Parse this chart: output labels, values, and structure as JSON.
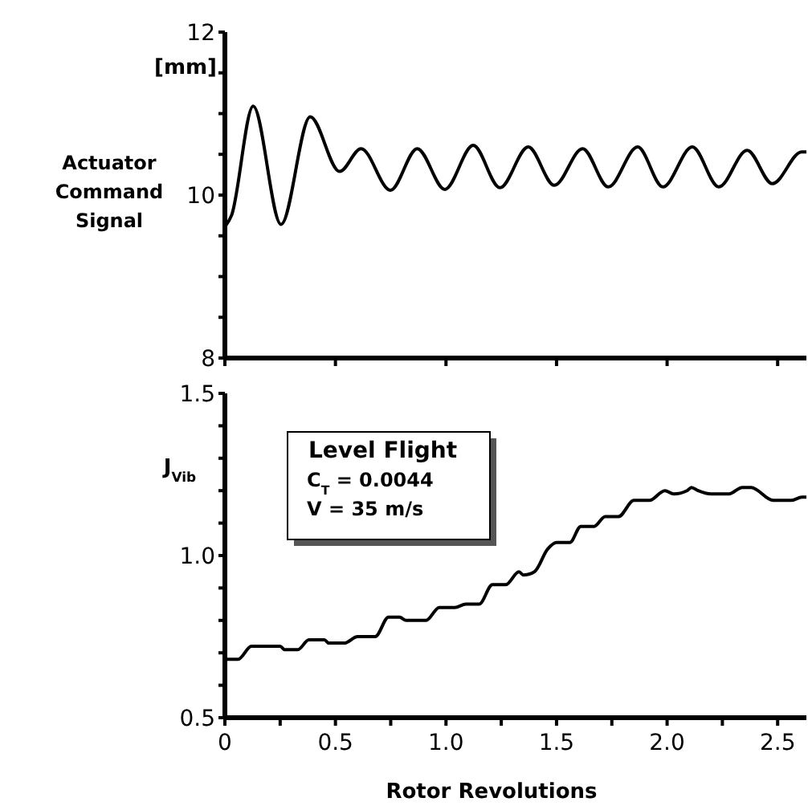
{
  "chart_data": [
    {
      "type": "line",
      "ylabel": "Actuator Command Signal",
      "annotations": [
        "[mm]"
      ],
      "tick_labels": "y",
      "marker": "none",
      "line_style": "solid",
      "grid": false,
      "xlim": [
        0,
        2.63
      ],
      "xticks": [
        {
          "value": 0,
          "label": null
        },
        {
          "value": 0.5,
          "label": null
        },
        {
          "value": 1,
          "label": null
        },
        {
          "value": 1.5,
          "label": null
        },
        {
          "value": 2,
          "label": null
        },
        {
          "value": 2.5,
          "label": null
        }
      ],
      "ylim": [
        8,
        12
      ],
      "yticks": [
        8,
        {
          "value": 8.5,
          "label": null
        },
        {
          "value": 9,
          "label": null
        },
        {
          "value": 9.5,
          "label": null
        },
        10,
        {
          "value": 10.5,
          "label": null
        },
        {
          "value": 11,
          "label": null
        },
        {
          "value": 11.5,
          "label": null
        },
        12
      ],
      "series": [
        {
          "color": "#000000",
          "x": [
            0,
            0.03,
            0.128,
            0.254,
            0.386,
            0.519,
            0.616,
            0.749,
            0.87,
            0.995,
            1.123,
            1.244,
            1.372,
            1.49,
            1.618,
            1.734,
            1.867,
            1.981,
            2.114,
            2.234,
            2.362,
            2.476,
            2.609,
            2.63
          ],
          "values": [
            9.61,
            9.75,
            11.09,
            9.64,
            10.96,
            10.29,
            10.57,
            10.06,
            10.57,
            10.07,
            10.61,
            10.09,
            10.59,
            10.12,
            10.57,
            10.1,
            10.59,
            10.1,
            10.59,
            10.1,
            10.55,
            10.14,
            10.53,
            10.53
          ]
        }
      ]
    },
    {
      "type": "line",
      "xlabel": "Rotor Revolutions",
      "ylabel": "J$_{Vib}$",
      "annotations": [
        "Level Flight",
        "C$_{T}$ = 0.0044",
        "V = 35 m/s"
      ],
      "marker": "none",
      "line_style": "solid",
      "grid": false,
      "xlim": [
        0,
        2.63
      ],
      "xticks": [
        0,
        {
          "value": 0.25,
          "label": null
        },
        0.5,
        {
          "value": 0.75,
          "label": null
        },
        {
          "value": 1,
          "label": "1.0"
        },
        {
          "value": 1.25,
          "label": null
        },
        1.5,
        {
          "value": 1.75,
          "label": null
        },
        {
          "value": 2,
          "label": "2.0"
        },
        {
          "value": 2.25,
          "label": null
        },
        2.5
      ],
      "ylim": [
        0.5,
        1.5
      ],
      "yticks": [
        0.5,
        {
          "value": 0.6,
          "label": null
        },
        {
          "value": 0.7,
          "label": null
        },
        {
          "value": 0.8,
          "label": null
        },
        {
          "value": 0.9,
          "label": null
        },
        {
          "value": 1,
          "label": "1.0"
        },
        {
          "value": 1.1,
          "label": null
        },
        {
          "value": 1.2,
          "label": null
        },
        {
          "value": 1.3,
          "label": null
        },
        {
          "value": 1.4,
          "label": null
        },
        1.5
      ],
      "series": [
        {
          "color": "#000000",
          "x": [
            0,
            0.06,
            0.12,
            0.25,
            0.27,
            0.33,
            0.38,
            0.45,
            0.47,
            0.54,
            0.6,
            0.68,
            0.74,
            0.79,
            0.82,
            0.91,
            0.97,
            1.04,
            1.09,
            1.15,
            1.21,
            1.27,
            1.33,
            1.35,
            1.4,
            1.46,
            1.5,
            1.56,
            1.61,
            1.67,
            1.72,
            1.78,
            1.85,
            1.92,
            1.99,
            2.03,
            2.09,
            2.11,
            2.14,
            2.2,
            2.28,
            2.34,
            2.38,
            2.48,
            2.52,
            2.56,
            2.61,
            2.63
          ],
          "values": [
            0.68,
            0.68,
            0.72,
            0.72,
            0.71,
            0.71,
            0.74,
            0.74,
            0.73,
            0.73,
            0.75,
            0.75,
            0.81,
            0.81,
            0.8,
            0.8,
            0.84,
            0.84,
            0.85,
            0.85,
            0.91,
            0.91,
            0.95,
            0.94,
            0.95,
            1.02,
            1.04,
            1.04,
            1.09,
            1.09,
            1.12,
            1.12,
            1.17,
            1.17,
            1.2,
            1.19,
            1.2,
            1.21,
            1.2,
            1.19,
            1.19,
            1.21,
            1.21,
            1.17,
            1.17,
            1.17,
            1.18,
            1.18
          ]
        }
      ]
    }
  ]
}
